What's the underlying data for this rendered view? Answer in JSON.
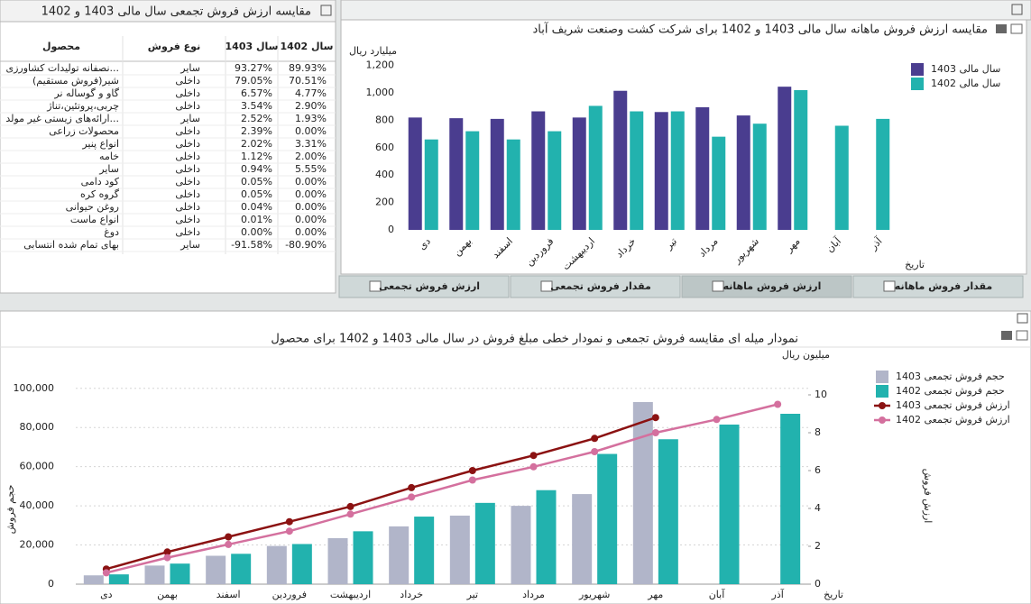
{
  "table": {
    "title": "مقایسه ارزش فروش تجمعی سال مالی 1403 و 1402",
    "columns": [
      "محصول",
      "نوع فروش",
      "سال 1403",
      "سال 1402"
    ],
    "rows": [
      [
        "...نصفانه تولیدات کشاورزی",
        "سایر",
        "93.27%",
        "89.93%"
      ],
      [
        "شیر(فروش مستقیم)",
        "داخلی",
        "79.05%",
        "70.51%"
      ],
      [
        "گاو و گوساله نر",
        "داخلی",
        "6.57%",
        "4.77%"
      ],
      [
        "چربی،پروتئین،تناژ",
        "داخلی",
        "3.54%",
        "2.90%"
      ],
      [
        "...ارائه‌های زیستی غیر مولد",
        "سایر",
        "2.52%",
        "1.93%"
      ],
      [
        "محصولات زراعی",
        "داخلی",
        "2.39%",
        "0.00%"
      ],
      [
        "انواع پنیر",
        "داخلی",
        "2.02%",
        "3.31%"
      ],
      [
        "خامه",
        "داخلی",
        "1.12%",
        "2.00%"
      ],
      [
        "سایر",
        "داخلی",
        "0.94%",
        "5.55%"
      ],
      [
        "کود دامی",
        "داخلی",
        "0.05%",
        "0.00%"
      ],
      [
        "گروه کره",
        "داخلی",
        "0.05%",
        "0.00%"
      ],
      [
        "روغن حیوانی",
        "داخلی",
        "0.04%",
        "0.00%"
      ],
      [
        "انواع ماست",
        "داخلی",
        "0.01%",
        "0.00%"
      ],
      [
        "دوغ",
        "داخلی",
        "0.00%",
        "0.00%"
      ],
      [
        "بهای تمام شده انتسابی",
        "سایر",
        "-91.58%",
        "-80.90%"
      ]
    ]
  },
  "tabs": {
    "items": [
      "مقدار فروش ماهانه",
      "ارزش فروش ماهانه",
      "مقدار فروش تجمعی",
      "ارزش فروش تجمعی"
    ],
    "active": 1
  },
  "chart_data": [
    {
      "type": "bar",
      "title": "مقایسه ارزش فروش ماهانه سال مالی 1403 و 1402 برای شرکت کشت وصنعت شریف آباد",
      "y_label": "میلیارد ریال",
      "x_label": "تاریخ",
      "categories": [
        "دی",
        "بهمن",
        "اسفند",
        "فروردین",
        "اردیبهشت",
        "خرداد",
        "تیر",
        "مرداد",
        "شهریور",
        "مهر",
        "آبان",
        "آذر"
      ],
      "series": [
        {
          "name": "سال مالی 1403",
          "color": "#4a3d8f",
          "values": [
            820,
            815,
            810,
            865,
            820,
            1015,
            860,
            895,
            835,
            1045,
            null,
            null
          ]
        },
        {
          "name": "سال مالی 1402",
          "color": "#22b2ae",
          "values": [
            660,
            720,
            660,
            720,
            905,
            865,
            865,
            680,
            775,
            1020,
            760,
            810
          ]
        }
      ],
      "ylim": [
        0,
        1250
      ],
      "yticks": [
        0,
        200,
        400,
        600,
        800,
        {
          "value": 1000,
          "label": "1,000"
        },
        {
          "value": 1200,
          "label": "1,200"
        }
      ],
      "grid": false,
      "legend": "top-right"
    },
    {
      "type": "combo",
      "title": "نمودار میله ای مقایسه فروش تجمعی و نمودار خطی مبلغ فروش در سال مالی 1403 و 1402 برای محصول",
      "y_label": "حجم فروش",
      "y2_label": "ارزش فروش",
      "y2_unit": "میلیون ریال",
      "x_label": "تاریخ",
      "categories": [
        "دی",
        "بهمن",
        "اسفند",
        "فروردین",
        "اردیبهشت",
        "خرداد",
        "تیر",
        "مرداد",
        "شهریور",
        "مهر",
        "آبان",
        "آذر"
      ],
      "series": [
        {
          "name": "حجم فروش تجمعی 1403",
          "type": "bar",
          "color": "#b1b5c9",
          "values": [
            4500,
            9500,
            14500,
            19500,
            23500,
            29500,
            35000,
            40000,
            46000,
            93000,
            null,
            null
          ]
        },
        {
          "name": "حجم فروش تجمعی 1402",
          "type": "bar",
          "color": "#22b2ae",
          "values": [
            5000,
            10500,
            15500,
            20500,
            27000,
            34500,
            41500,
            48000,
            66500,
            74000,
            81500,
            87000
          ]
        },
        {
          "name": "ارزش فروش تجمعی 1403",
          "type": "line",
          "axis": "y2",
          "color": "#8b1212",
          "values": [
            0.8,
            1.7,
            2.5,
            3.3,
            4.1,
            5.1,
            6.0,
            6.8,
            7.7,
            8.8,
            null,
            null
          ]
        },
        {
          "name": "ارزش فروش تجمعی 1402",
          "type": "line",
          "axis": "y2",
          "color": "#d4709e",
          "values": [
            0.6,
            1.4,
            2.1,
            2.8,
            3.7,
            4.6,
            5.5,
            6.2,
            7.0,
            8.0,
            8.7,
            9.5
          ]
        }
      ],
      "ylim": [
        0,
        116000
      ],
      "yticks": [
        0,
        {
          "value": 20000,
          "label": "20,000"
        },
        {
          "value": 40000,
          "label": "40,000"
        },
        {
          "value": 60000,
          "label": "60,000"
        },
        {
          "value": 80000,
          "label": "80,000"
        },
        {
          "value": 100000,
          "label": "100,000"
        }
      ],
      "y2lim": [
        0,
        12
      ],
      "y2ticks": [
        0,
        2,
        4,
        6,
        8,
        10
      ],
      "grid": true,
      "legend": "top-right"
    }
  ]
}
